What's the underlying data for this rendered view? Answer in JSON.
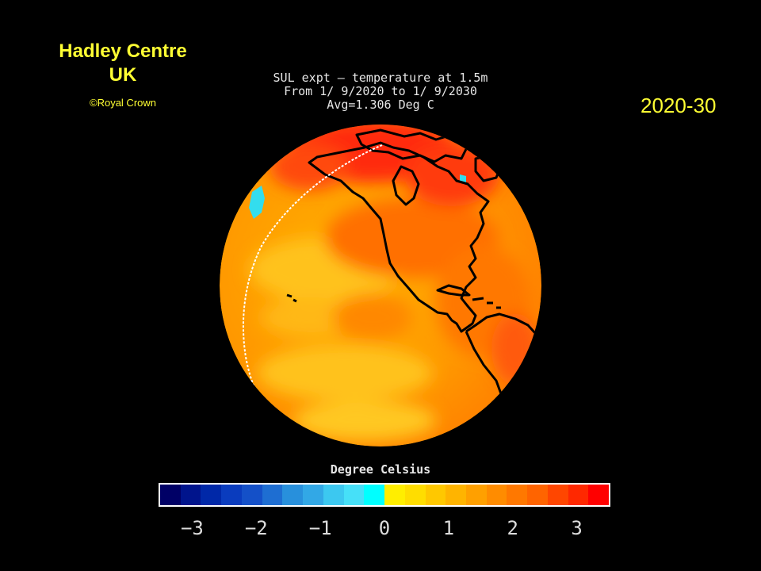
{
  "credit": {
    "organization": "Hadley Centre UK",
    "copyright": "©Royal Crown"
  },
  "period": "2020-30",
  "map": {
    "title_lines": [
      "SUL expt — temperature at 1.5m",
      "From 1/ 9/2020 to 1/ 9/2030",
      "Avg=1.306 Deg C"
    ]
  },
  "scale": {
    "label": "Degree Celsius",
    "ticks": [
      "−3",
      "−2",
      "−1",
      "0",
      "1",
      "2",
      "3"
    ],
    "tick_values": [
      -3,
      -2,
      -1,
      0,
      1,
      2,
      3
    ],
    "min": -3.5,
    "max": 3.5,
    "colors": [
      "#000066",
      "#00148c",
      "#0028a8",
      "#0a3cbe",
      "#1450c8",
      "#1e6ed2",
      "#2890dc",
      "#32a8e6",
      "#3cc8f0",
      "#46e0f8",
      "#00ffff",
      "#ffee00",
      "#ffdd00",
      "#ffc800",
      "#ffb400",
      "#ffa000",
      "#ff8c00",
      "#ff7800",
      "#ff6400",
      "#ff4600",
      "#ff2800",
      "#ff0000"
    ]
  },
  "globe_colors": {
    "base": "#ffa000",
    "warm": "#ff6a00",
    "hot": "#ff2a10",
    "cool": "#ffcc22",
    "coldspot": "#33ddee",
    "coast": "#000000",
    "date_line": "#ffffff"
  }
}
